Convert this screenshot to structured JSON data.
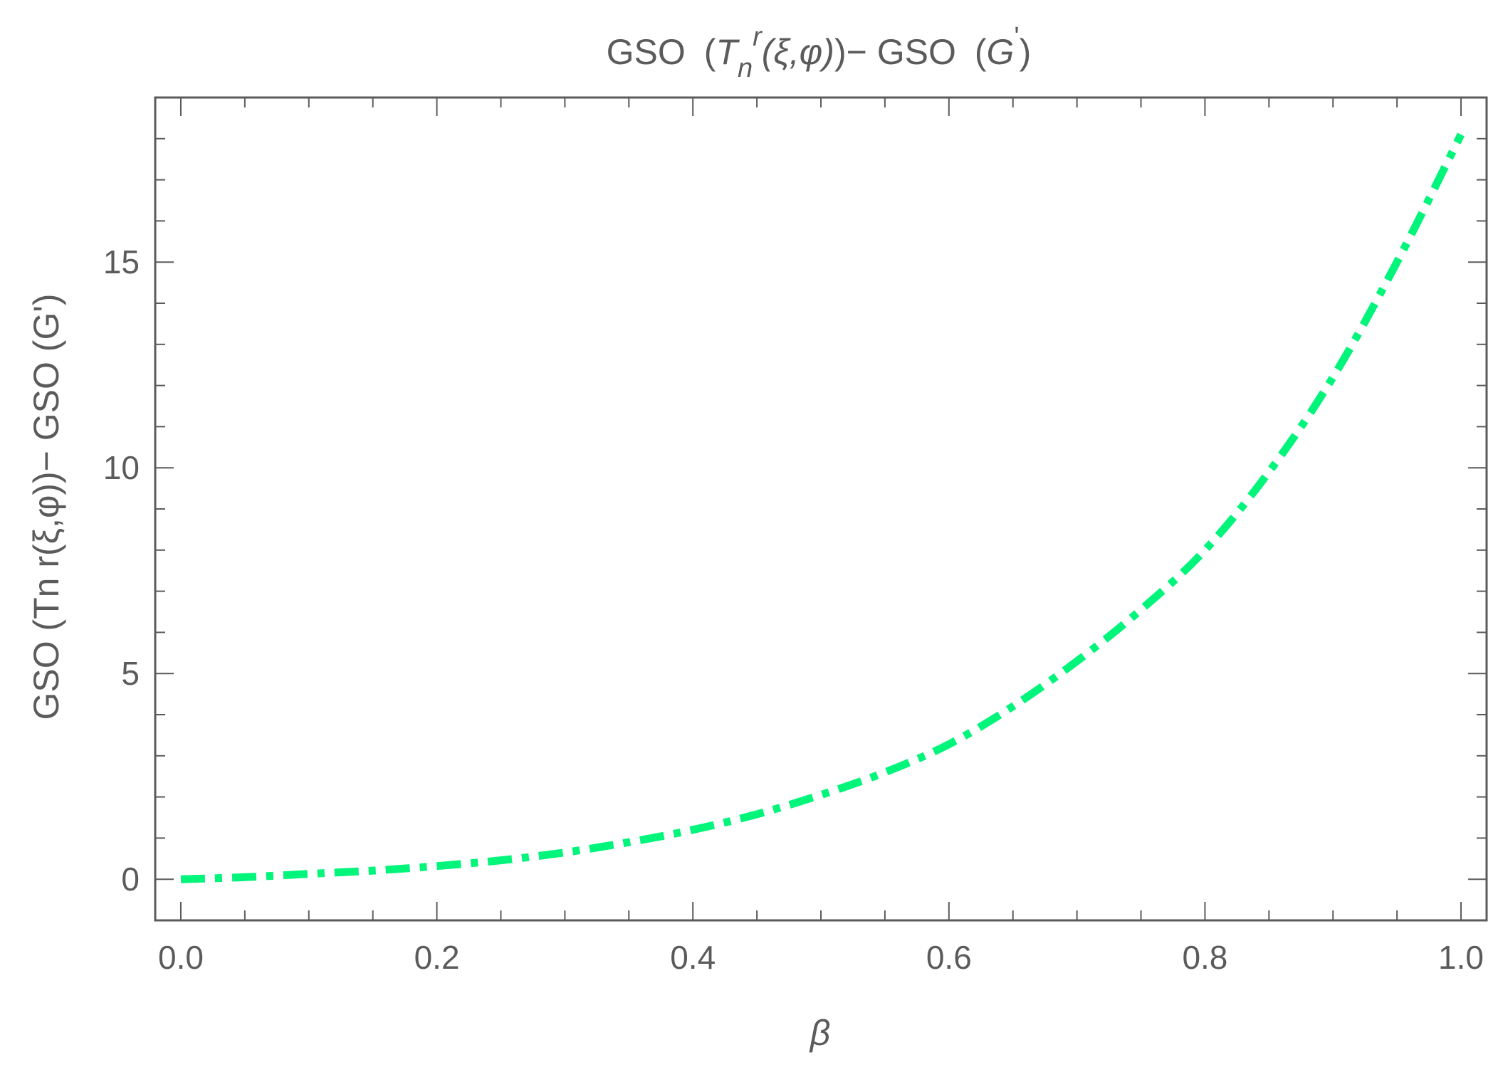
{
  "chart_data": {
    "type": "line",
    "title": {
      "prefix": "GSO",
      "open": "(",
      "T": "T",
      "sub": "n",
      "sup": "r",
      "args": "(ξ,φ)",
      "close": ")",
      "minus": "− GSO",
      "open2": "(",
      "G": "G",
      "prime": "'",
      "close2": ")"
    },
    "xlabel": "β",
    "ylabel": "GSO (Tn r(ξ,φ))− GSO (G')",
    "xlim": [
      -0.02,
      1.02
    ],
    "ylim": [
      -1,
      19
    ],
    "x_ticks": [
      "0.0",
      "0.2",
      "0.4",
      "0.6",
      "0.8",
      "1.0"
    ],
    "x_tick_values": [
      0,
      0.2,
      0.4,
      0.6,
      0.8,
      1.0
    ],
    "y_ticks": [
      "0",
      "5",
      "10",
      "15"
    ],
    "y_tick_values": [
      0,
      5,
      10,
      15
    ],
    "series": [
      {
        "color": "#00f57a",
        "style": "dash-dot",
        "x": [
          0,
          0.05,
          0.1,
          0.15,
          0.2,
          0.25,
          0.3,
          0.35,
          0.4,
          0.45,
          0.5,
          0.55,
          0.6,
          0.65,
          0.7,
          0.75,
          0.8,
          0.85,
          0.9,
          0.95,
          1.0
        ],
        "y": [
          0,
          0.05,
          0.13,
          0.21,
          0.32,
          0.46,
          0.65,
          0.9,
          1.2,
          1.58,
          2.05,
          2.6,
          3.28,
          4.2,
          5.3,
          6.55,
          8.0,
          9.9,
          12.2,
          15.0,
          18.1
        ]
      }
    ],
    "grid": false,
    "frame_color": "#5b5b5b"
  }
}
